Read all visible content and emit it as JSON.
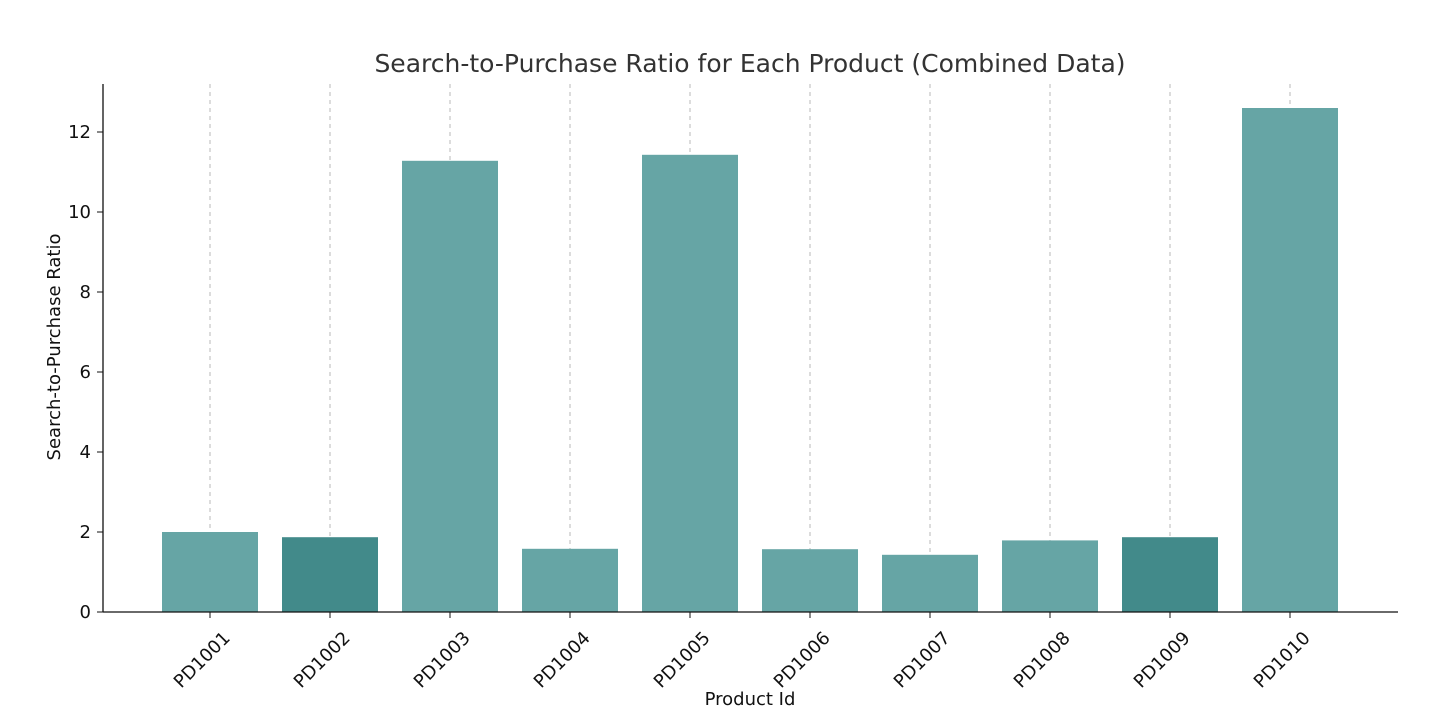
{
  "chart_data": {
    "type": "bar",
    "title": "Search-to-Purchase Ratio for Each Product (Combined Data)",
    "xlabel": "Product Id",
    "ylabel": "Search-to-Purchase Ratio",
    "categories": [
      "PD1001",
      "PD1002",
      "PD1003",
      "PD1004",
      "PD1005",
      "PD1006",
      "PD1007",
      "PD1008",
      "PD1009",
      "PD1010"
    ],
    "values": [
      2.0,
      1.87,
      11.28,
      1.58,
      11.43,
      1.57,
      1.43,
      1.79,
      1.87,
      12.6
    ],
    "bar_colors": [
      "#66a5a5",
      "#428a8a",
      "#66a5a5",
      "#66a5a5",
      "#66a5a5",
      "#66a5a5",
      "#66a5a5",
      "#66a5a5",
      "#428a8a",
      "#66a5a5"
    ],
    "ylim": [
      0,
      13.2
    ],
    "yticks": [
      0,
      2,
      4,
      6,
      8,
      10,
      12
    ],
    "grid": "x-dashed"
  }
}
